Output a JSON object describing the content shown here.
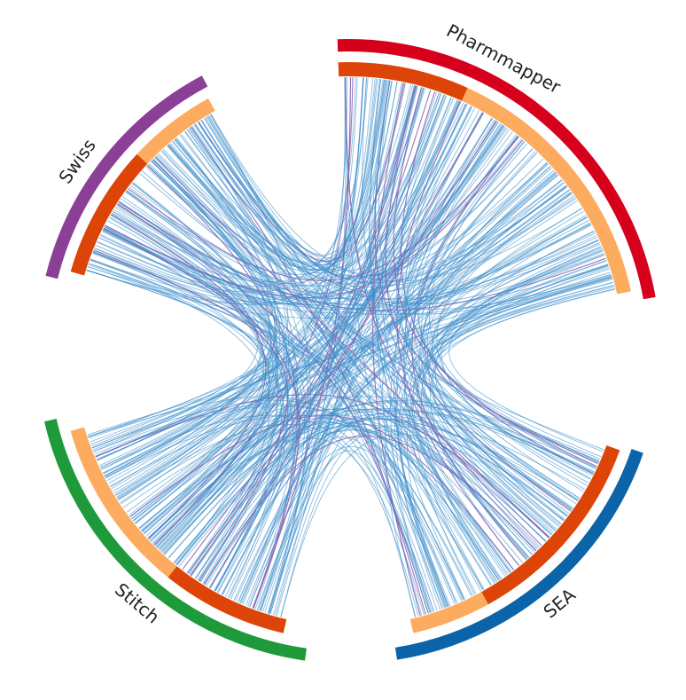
{
  "colors": {
    "background": "#ffffff",
    "link_main": "#3f8fcb",
    "link_alt": "#8a5fae",
    "inner_primary": "#dd4408",
    "inner_secondary": "#fdab5f"
  },
  "segments": [
    {
      "id": "pharmmapper",
      "label": "Pharmmapper",
      "outer_color": "#d6001c",
      "inner_first_color": "#dd4408",
      "inner_first_fraction": 0.33
    },
    {
      "id": "sea",
      "label": "SEA",
      "outer_color": "#0b63a8",
      "inner_first_color": "#dd4408",
      "inner_first_fraction": 0.72
    },
    {
      "id": "stitch",
      "label": "Stitch",
      "outer_color": "#1e9a3a",
      "inner_first_color": "#dd4408",
      "inner_first_fraction": 0.45
    },
    {
      "id": "swiss",
      "label": "Swiss",
      "outer_color": "#8c3f96",
      "inner_first_color": "#dd4408",
      "inner_first_fraction": 0.6
    }
  ]
}
